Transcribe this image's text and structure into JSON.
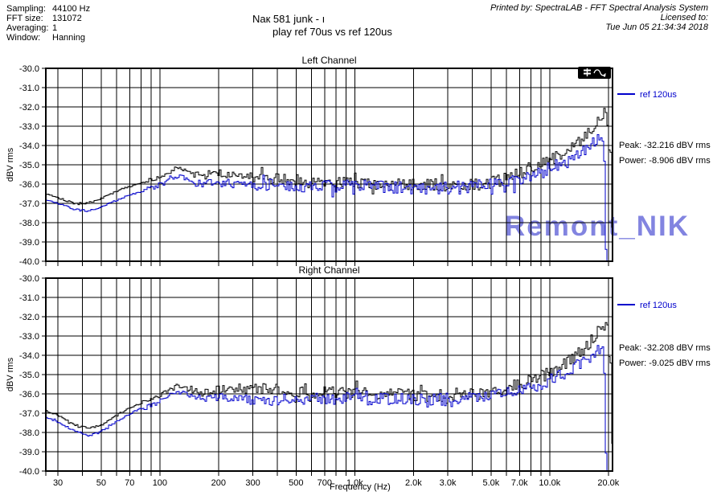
{
  "header": {
    "params": [
      {
        "label": "Sampling:",
        "value": "44100 Hz"
      },
      {
        "label": "FFT size:",
        "value": "131072"
      },
      {
        "label": "Averaging:",
        "value": "1"
      },
      {
        "label": "Window:",
        "value": "Hanning"
      }
    ],
    "title_line1": "Naк 581 junk - ı",
    "title_line2": "play ref 70us vs ref 120us",
    "printed_by": "Printed by: SpectraLAB - FFT Spectral Analysis System",
    "licensed_to": "Licensed to:",
    "print_date": "Tue Jun 05 21:34:34 2018"
  },
  "watermark": {
    "text": "Remont_NIK",
    "color": "#8284e0"
  },
  "toolbar_icons": [
    "fader-icon",
    "sine-wave-icon"
  ],
  "colors": {
    "series_black": "#000000",
    "series_blue": "#0000cc",
    "grid": "#000000"
  },
  "chart_data": [
    {
      "type": "line",
      "title": "Left Channel",
      "ylabel": "dBV rms",
      "xlabel": "",
      "x_scale": "log",
      "xlim": [
        26,
        21000
      ],
      "ylim": [
        -40,
        -30
      ],
      "grid": "on",
      "legend_position": "right-outside",
      "y_ticks": [
        -30,
        -31,
        -32,
        -33,
        -34,
        -35,
        -36,
        -37,
        -38,
        -39,
        -40
      ],
      "y_tick_labels": [
        "-30.0",
        "-31.0",
        "-32.0",
        "-33.0",
        "-34.0",
        "-35.0",
        "-36.0",
        "-37.0",
        "-38.0",
        "-39.0",
        "-40.0"
      ],
      "x_tick_freqs": [
        30,
        50,
        70,
        100,
        200,
        300,
        500,
        700,
        1000,
        2000,
        3000,
        5000,
        7000,
        10000,
        20000
      ],
      "x_tick_labels": [],
      "legend": {
        "label": "ref 120us",
        "color": "#0000cc"
      },
      "peak_text": "Peak: -32.216 dBV rms",
      "power_text": "Power: -8.906 dBV rms",
      "series": [
        {
          "name": "play ref 70us",
          "color": "#000000",
          "seed": 101,
          "points": [
            [
              26,
              -36.5
            ],
            [
              30,
              -36.7
            ],
            [
              36,
              -37.0
            ],
            [
              42,
              -37.0
            ],
            [
              48,
              -36.8
            ],
            [
              56,
              -36.5
            ],
            [
              65,
              -36.2
            ],
            [
              76,
              -36.0
            ],
            [
              88,
              -35.8
            ],
            [
              100,
              -35.7
            ],
            [
              110,
              -35.4
            ],
            [
              120,
              -35.1
            ],
            [
              130,
              -35.2
            ],
            [
              145,
              -35.5
            ],
            [
              165,
              -35.6
            ],
            [
              185,
              -35.4
            ],
            [
              210,
              -35.5
            ],
            [
              260,
              -35.6
            ],
            [
              320,
              -35.6
            ],
            [
              420,
              -35.8
            ],
            [
              560,
              -35.8
            ],
            [
              750,
              -35.9
            ],
            [
              1000,
              -35.9
            ],
            [
              1500,
              -36.0
            ],
            [
              2200,
              -36.0
            ],
            [
              3200,
              -36.1
            ],
            [
              4500,
              -36.0
            ],
            [
              5500,
              -35.8
            ],
            [
              7000,
              -35.4
            ],
            [
              8500,
              -35.1
            ],
            [
              10000,
              -34.8
            ],
            [
              12000,
              -34.3
            ],
            [
              14000,
              -33.8
            ],
            [
              16000,
              -33.2
            ],
            [
              17500,
              -32.7
            ],
            [
              18800,
              -32.35
            ],
            [
              19600,
              -32.5
            ],
            [
              19850,
              -33.6
            ],
            [
              20050,
              -34.4
            ],
            [
              20600,
              -34.6
            ],
            [
              20780,
              -38.0
            ],
            [
              20950,
              -41.5
            ]
          ]
        },
        {
          "name": "ref 120us",
          "color": "#0000cc",
          "seed": 202,
          "points": [
            [
              26,
              -36.8
            ],
            [
              30,
              -37.0
            ],
            [
              36,
              -37.3
            ],
            [
              43,
              -37.4
            ],
            [
              50,
              -37.2
            ],
            [
              58,
              -36.9
            ],
            [
              67,
              -36.6
            ],
            [
              78,
              -36.4
            ],
            [
              90,
              -36.2
            ],
            [
              102,
              -36.0
            ],
            [
              113,
              -35.8
            ],
            [
              123,
              -35.6
            ],
            [
              133,
              -35.7
            ],
            [
              150,
              -35.9
            ],
            [
              170,
              -36.0
            ],
            [
              195,
              -35.9
            ],
            [
              240,
              -36.0
            ],
            [
              320,
              -36.0
            ],
            [
              430,
              -36.1
            ],
            [
              600,
              -36.1
            ],
            [
              850,
              -36.1
            ],
            [
              1200,
              -36.1
            ],
            [
              1800,
              -36.2
            ],
            [
              2600,
              -36.2
            ],
            [
              3600,
              -36.2
            ],
            [
              4800,
              -36.0
            ],
            [
              6000,
              -35.9
            ],
            [
              7500,
              -35.6
            ],
            [
              9000,
              -35.4
            ],
            [
              10500,
              -35.1
            ],
            [
              12500,
              -34.7
            ],
            [
              14500,
              -34.3
            ],
            [
              16500,
              -33.9
            ],
            [
              17800,
              -33.6
            ],
            [
              18500,
              -33.5
            ],
            [
              18850,
              -34.3
            ],
            [
              19050,
              -36.4
            ],
            [
              19250,
              -38.6
            ],
            [
              19420,
              -41.5
            ]
          ]
        }
      ]
    },
    {
      "type": "line",
      "title": "Right Channel",
      "ylabel": "dBV rms",
      "xlabel": "Frequency (Hz)",
      "x_scale": "log",
      "xlim": [
        26,
        21000
      ],
      "ylim": [
        -40,
        -30
      ],
      "grid": "on",
      "legend_position": "right-outside",
      "y_ticks": [
        -30,
        -31,
        -32,
        -33,
        -34,
        -35,
        -36,
        -37,
        -38,
        -39,
        -40
      ],
      "y_tick_labels": [
        "-30.0",
        "-31.0",
        "-32.0",
        "-33.0",
        "-34.0",
        "-35.0",
        "-36.0",
        "-37.0",
        "-38.0",
        "-39.0",
        "-40.0"
      ],
      "x_tick_freqs": [
        30,
        50,
        70,
        100,
        200,
        300,
        500,
        700,
        1000,
        2000,
        3000,
        5000,
        7000,
        10000,
        20000
      ],
      "x_tick_labels": [
        "30",
        "50",
        "70",
        "100",
        "200",
        "300",
        "500",
        "700",
        "1.0k",
        "2.0k",
        "3.0k",
        "5.0k",
        "7.0k",
        "10.0k",
        "20.0k"
      ],
      "legend": {
        "label": "ref 120us",
        "color": "#0000cc"
      },
      "peak_text": "Peak: -32.208 dBV rms",
      "power_text": "Power: -9.025 dBV rms",
      "series": [
        {
          "name": "play ref 70us",
          "color": "#000000",
          "seed": 303,
          "points": [
            [
              26,
              -36.9
            ],
            [
              30,
              -37.1
            ],
            [
              36,
              -37.6
            ],
            [
              43,
              -37.8
            ],
            [
              50,
              -37.6
            ],
            [
              58,
              -37.2
            ],
            [
              67,
              -36.8
            ],
            [
              78,
              -36.5
            ],
            [
              90,
              -36.3
            ],
            [
              102,
              -36.0
            ],
            [
              112,
              -35.8
            ],
            [
              122,
              -35.6
            ],
            [
              132,
              -35.7
            ],
            [
              148,
              -35.9
            ],
            [
              168,
              -36.0
            ],
            [
              190,
              -35.8
            ],
            [
              230,
              -35.7
            ],
            [
              300,
              -35.7
            ],
            [
              400,
              -35.8
            ],
            [
              550,
              -35.9
            ],
            [
              750,
              -35.9
            ],
            [
              1000,
              -36.0
            ],
            [
              1500,
              -36.0
            ],
            [
              2200,
              -36.1
            ],
            [
              3200,
              -36.1
            ],
            [
              4500,
              -36.0
            ],
            [
              5500,
              -35.8
            ],
            [
              7000,
              -35.5
            ],
            [
              8500,
              -35.2
            ],
            [
              10000,
              -34.9
            ],
            [
              12000,
              -34.4
            ],
            [
              14000,
              -33.9
            ],
            [
              16000,
              -33.3
            ],
            [
              17500,
              -32.8
            ],
            [
              18800,
              -32.4
            ],
            [
              19600,
              -32.6
            ],
            [
              19850,
              -33.8
            ],
            [
              20100,
              -34.5
            ],
            [
              20600,
              -34.6
            ],
            [
              20800,
              -38.3
            ],
            [
              20950,
              -41.5
            ]
          ]
        },
        {
          "name": "ref 120us",
          "color": "#0000cc",
          "seed": 404,
          "points": [
            [
              26,
              -37.2
            ],
            [
              30,
              -37.5
            ],
            [
              36,
              -37.9
            ],
            [
              43,
              -38.2
            ],
            [
              50,
              -37.9
            ],
            [
              58,
              -37.5
            ],
            [
              67,
              -37.1
            ],
            [
              78,
              -36.8
            ],
            [
              90,
              -36.6
            ],
            [
              102,
              -36.3
            ],
            [
              113,
              -36.1
            ],
            [
              123,
              -35.9
            ],
            [
              133,
              -36.0
            ],
            [
              150,
              -36.2
            ],
            [
              170,
              -36.3
            ],
            [
              195,
              -36.2
            ],
            [
              240,
              -36.2
            ],
            [
              320,
              -36.3
            ],
            [
              430,
              -36.3
            ],
            [
              600,
              -36.3
            ],
            [
              850,
              -36.2
            ],
            [
              1200,
              -36.3
            ],
            [
              1800,
              -36.3
            ],
            [
              2600,
              -36.3
            ],
            [
              3600,
              -36.3
            ],
            [
              4800,
              -36.1
            ],
            [
              6000,
              -36.0
            ],
            [
              7500,
              -35.7
            ],
            [
              9000,
              -35.5
            ],
            [
              10500,
              -35.2
            ],
            [
              12500,
              -34.8
            ],
            [
              14500,
              -34.4
            ],
            [
              16500,
              -34.0
            ],
            [
              17800,
              -33.7
            ],
            [
              18500,
              -33.6
            ],
            [
              18850,
              -34.5
            ],
            [
              19050,
              -36.6
            ],
            [
              19250,
              -38.8
            ],
            [
              19420,
              -41.5
            ]
          ]
        }
      ]
    }
  ]
}
